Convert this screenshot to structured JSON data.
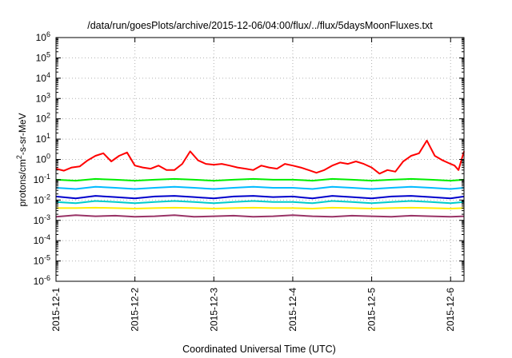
{
  "chart_data": {
    "type": "line",
    "title": "/data/run/goesPlots/archive/2015-12-06/04:00/flux/../flux/5daysMoonFluxes.txt",
    "xlabel": "Coordinated Universal Time (UTC)",
    "ylabel": {
      "base": "protons/cm",
      "sup": "2",
      "rest": "-s-sr-MeV"
    },
    "yscale": "log",
    "ylim_exp": [
      -6,
      6
    ],
    "y_ticks": [
      {
        "base": "10",
        "exp": "-6"
      },
      {
        "base": "10",
        "exp": "-5"
      },
      {
        "base": "10",
        "exp": "-4"
      },
      {
        "base": "10",
        "exp": "-3"
      },
      {
        "base": "10",
        "exp": "-2"
      },
      {
        "base": "10",
        "exp": "-1"
      },
      {
        "base": "10",
        "exp": "0"
      },
      {
        "base": "10",
        "exp": "1"
      },
      {
        "base": "10",
        "exp": "2"
      },
      {
        "base": "10",
        "exp": "3"
      },
      {
        "base": "10",
        "exp": "4"
      },
      {
        "base": "10",
        "exp": "5"
      },
      {
        "base": "10",
        "exp": "6"
      }
    ],
    "x_ticks": [
      "2015-12-1",
      "2015-12-2",
      "2015-12-3",
      "2015-12-4",
      "2015-12-5",
      "2015-12-6"
    ],
    "xlim_days": [
      0,
      5.17
    ],
    "grid": true,
    "series": [
      {
        "color": "#ff0000",
        "x": [
          0,
          0.1,
          0.2,
          0.3,
          0.4,
          0.5,
          0.6,
          0.7,
          0.8,
          0.9,
          1.0,
          1.1,
          1.2,
          1.3,
          1.4,
          1.5,
          1.6,
          1.7,
          1.8,
          1.9,
          2.0,
          2.1,
          2.2,
          2.3,
          2.4,
          2.5,
          2.6,
          2.7,
          2.8,
          2.9,
          3.0,
          3.1,
          3.2,
          3.3,
          3.4,
          3.5,
          3.6,
          3.7,
          3.8,
          3.9,
          4.0,
          4.1,
          4.2,
          4.3,
          4.4,
          4.5,
          4.6,
          4.7,
          4.8,
          4.9,
          5.0,
          5.05,
          5.1,
          5.17
        ],
        "y": [
          0.35,
          0.28,
          0.4,
          0.45,
          0.9,
          1.5,
          2.0,
          0.8,
          1.5,
          2.2,
          0.5,
          0.4,
          0.35,
          0.5,
          0.3,
          0.3,
          0.6,
          2.5,
          0.9,
          0.6,
          0.55,
          0.6,
          0.5,
          0.4,
          0.35,
          0.3,
          0.5,
          0.4,
          0.35,
          0.6,
          0.5,
          0.4,
          0.3,
          0.22,
          0.3,
          0.5,
          0.7,
          0.6,
          0.8,
          0.6,
          0.4,
          0.2,
          0.3,
          0.25,
          0.8,
          1.5,
          2.0,
          8.5,
          1.5,
          0.9,
          0.6,
          0.5,
          0.3,
          2.5
        ]
      },
      {
        "color": "#00ee00",
        "x": [
          0,
          0.25,
          0.5,
          0.75,
          1.0,
          1.25,
          1.5,
          1.75,
          2.0,
          2.25,
          2.5,
          2.75,
          3.0,
          3.25,
          3.5,
          3.75,
          4.0,
          4.25,
          4.5,
          4.75,
          5.0,
          5.17
        ],
        "y": [
          0.1,
          0.09,
          0.11,
          0.1,
          0.09,
          0.1,
          0.11,
          0.1,
          0.09,
          0.1,
          0.11,
          0.1,
          0.1,
          0.09,
          0.11,
          0.1,
          0.09,
          0.1,
          0.11,
          0.1,
          0.09,
          0.1
        ]
      },
      {
        "color": "#00bbff",
        "x": [
          0,
          0.25,
          0.5,
          0.75,
          1.0,
          1.25,
          1.5,
          1.75,
          2.0,
          2.25,
          2.5,
          2.75,
          3.0,
          3.25,
          3.5,
          3.75,
          4.0,
          4.25,
          4.5,
          4.75,
          5.0,
          5.17
        ],
        "y": [
          0.04,
          0.035,
          0.045,
          0.04,
          0.035,
          0.04,
          0.045,
          0.04,
          0.035,
          0.04,
          0.045,
          0.04,
          0.04,
          0.035,
          0.045,
          0.04,
          0.035,
          0.04,
          0.045,
          0.04,
          0.035,
          0.04
        ]
      },
      {
        "color": "#0000cc",
        "x": [
          0,
          0.25,
          0.5,
          0.75,
          1.0,
          1.25,
          1.5,
          1.75,
          2.0,
          2.25,
          2.5,
          2.75,
          3.0,
          3.25,
          3.5,
          3.75,
          4.0,
          4.25,
          4.5,
          4.75,
          5.0,
          5.17
        ],
        "y": [
          0.015,
          0.012,
          0.016,
          0.014,
          0.012,
          0.015,
          0.016,
          0.014,
          0.012,
          0.015,
          0.016,
          0.014,
          0.015,
          0.012,
          0.016,
          0.014,
          0.012,
          0.015,
          0.016,
          0.014,
          0.012,
          0.015
        ]
      },
      {
        "color": "#00cccc",
        "x": [
          0,
          0.25,
          0.5,
          0.75,
          1.0,
          1.25,
          1.5,
          1.75,
          2.0,
          2.25,
          2.5,
          2.75,
          3.0,
          3.25,
          3.5,
          3.75,
          4.0,
          4.25,
          4.5,
          4.75,
          5.0,
          5.17
        ],
        "y": [
          0.008,
          0.007,
          0.009,
          0.008,
          0.007,
          0.008,
          0.009,
          0.008,
          0.007,
          0.008,
          0.009,
          0.008,
          0.008,
          0.007,
          0.009,
          0.008,
          0.007,
          0.008,
          0.009,
          0.008,
          0.007,
          0.008
        ]
      },
      {
        "color": "#ffee00",
        "x": [
          0,
          0.25,
          0.5,
          0.75,
          1.0,
          1.25,
          1.5,
          1.75,
          2.0,
          2.25,
          2.5,
          2.75,
          3.0,
          3.25,
          3.5,
          3.75,
          4.0,
          4.25,
          4.5,
          4.75,
          5.0,
          5.17
        ],
        "y": [
          0.004,
          0.004,
          0.0042,
          0.004,
          0.0038,
          0.004,
          0.0042,
          0.004,
          0.0038,
          0.004,
          0.0042,
          0.004,
          0.004,
          0.0038,
          0.0042,
          0.004,
          0.0038,
          0.004,
          0.0042,
          0.004,
          0.0038,
          0.004
        ]
      },
      {
        "color": "#993366",
        "x": [
          0,
          0.25,
          0.5,
          0.75,
          1.0,
          1.25,
          1.5,
          1.75,
          2.0,
          2.25,
          2.5,
          2.75,
          3.0,
          3.25,
          3.5,
          3.75,
          4.0,
          4.25,
          4.5,
          4.75,
          5.0,
          5.17
        ],
        "y": [
          0.0015,
          0.0018,
          0.0016,
          0.0017,
          0.0015,
          0.0016,
          0.0018,
          0.0015,
          0.0016,
          0.0017,
          0.0015,
          0.0016,
          0.0018,
          0.0016,
          0.0015,
          0.0017,
          0.0016,
          0.0015,
          0.0017,
          0.0016,
          0.0015,
          0.0016
        ]
      }
    ]
  }
}
